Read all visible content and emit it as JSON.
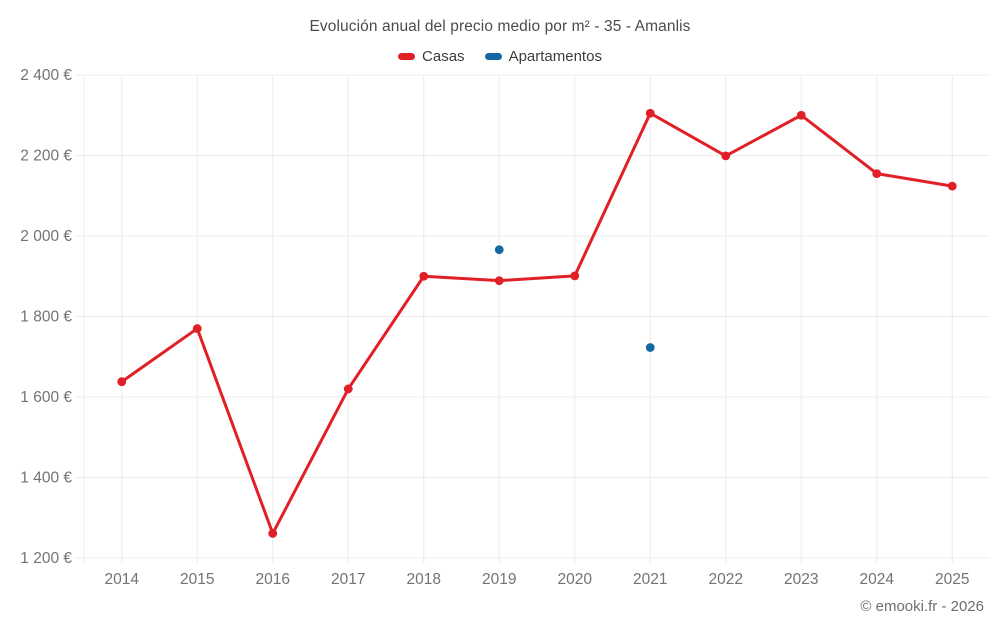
{
  "chart": {
    "footer": "© emooki.fr - 2026",
    "colors": {
      "casas": "#e02026",
      "apartamentos": "#1569a0",
      "grid": "#ececec",
      "axis_text": "#737373",
      "title_text": "#4c4c4c",
      "legend_text": "#3d3d3d"
    }
  },
  "chart_data": {
    "type": "line",
    "title": "Evolución anual del precio medio por m² - 35 - Amanlis",
    "categories": [
      "2014",
      "2015",
      "2016",
      "2017",
      "2018",
      "2019",
      "2020",
      "2021",
      "2022",
      "2023",
      "2024",
      "2025"
    ],
    "series": [
      {
        "name": "Casas",
        "color": "#e02026",
        "values": [
          1638,
          1770,
          1261,
          1620,
          1900,
          1889,
          1901,
          2305,
          2199,
          2300,
          2155,
          2124
        ]
      },
      {
        "name": "Apartamentos",
        "color": "#1569a0",
        "values": [
          null,
          null,
          null,
          null,
          null,
          1966,
          null,
          1723,
          null,
          null,
          null,
          null
        ]
      }
    ],
    "xlabel": "",
    "ylabel": "",
    "ylim": [
      1200,
      2400
    ],
    "ytick_step": 200,
    "ytick_suffix": " €",
    "grid": true,
    "legend_position": "top"
  }
}
